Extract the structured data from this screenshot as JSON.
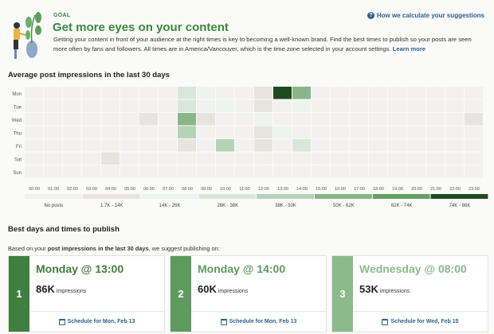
{
  "header": {
    "eyebrow": "GOAL",
    "title": "Get more eyes on your content",
    "help_link": "How we calculate your suggestions",
    "description": "Getting your content in front of your audience at the right times is key to becoming a well-known brand. Find the best times to publish so your posts are seen more often by fans and followers. All times are in America/Vancouver, which is the time zone selected in your account settings.",
    "learn_more": "Learn more"
  },
  "heatmap_title": "Average post impressions in the last 30 days",
  "chart_data": {
    "type": "heatmap",
    "rows": [
      "Mon",
      "Tue",
      "Wed",
      "Thu",
      "Fri",
      "Sat",
      "Sun"
    ],
    "columns": [
      "00:00",
      "01:00",
      "02:00",
      "03:00",
      "04:00",
      "05:00",
      "06:00",
      "07:00",
      "08:00",
      "09:00",
      "10:00",
      "11:00",
      "12:00",
      "13:00",
      "14:00",
      "15:00",
      "16:00",
      "17:00",
      "18:00",
      "19:00",
      "20:00",
      "21:00",
      "22:00",
      "23:00"
    ],
    "legend": [
      "No posts",
      "1.7K - 14K",
      "14K - 26K",
      "26K - 38K",
      "38K - 50K",
      "50K - 62K",
      "62K - 74K",
      "74K - 86K"
    ],
    "colors": [
      "#f2f1f0",
      "#e7e4e0",
      "#eef3ee",
      "#d9e7d9",
      "#b5d3b5",
      "#88b688",
      "#64a064",
      "#1e4a1e"
    ],
    "bin_index": [
      [
        0,
        0,
        0,
        0,
        0,
        0,
        0,
        0,
        3,
        2,
        0,
        0,
        1,
        7,
        5,
        0,
        0,
        0,
        0,
        0,
        0,
        0,
        0,
        0
      ],
      [
        0,
        0,
        0,
        0,
        0,
        0,
        0,
        0,
        3,
        2,
        2,
        0,
        1,
        0,
        2,
        0,
        0,
        0,
        0,
        0,
        0,
        0,
        0,
        0
      ],
      [
        0,
        0,
        0,
        0,
        0,
        0,
        1,
        0,
        5,
        1,
        0,
        0,
        2,
        0,
        0,
        0,
        0,
        0,
        0,
        0,
        0,
        0,
        0,
        1
      ],
      [
        0,
        0,
        0,
        0,
        0,
        0,
        0,
        0,
        4,
        0,
        0,
        0,
        1,
        2,
        0,
        0,
        0,
        0,
        0,
        0,
        0,
        0,
        0,
        0
      ],
      [
        0,
        0,
        0,
        0,
        0,
        0,
        0,
        0,
        1,
        0,
        4,
        0,
        1,
        0,
        3,
        0,
        0,
        0,
        0,
        0,
        0,
        0,
        0,
        0
      ],
      [
        0,
        0,
        0,
        0,
        1,
        0,
        0,
        0,
        0,
        0,
        0,
        0,
        0,
        0,
        0,
        0,
        0,
        0,
        0,
        0,
        0,
        0,
        0,
        0
      ],
      [
        0,
        0,
        0,
        0,
        0,
        0,
        0,
        0,
        0,
        0,
        0,
        0,
        0,
        0,
        0,
        0,
        0,
        0,
        0,
        0,
        0,
        0,
        0,
        0
      ]
    ]
  },
  "best": {
    "title": "Best days and times to publish",
    "intro_pre": "Based on your ",
    "intro_bold": "post impressions in the last 30 days",
    "intro_post": ", we suggest publishing on:",
    "cards": [
      {
        "rank": "1",
        "when": "Monday @ 13:00",
        "value": "86K",
        "unit": "impressions",
        "schedule": "Schedule for Mon, Feb 13",
        "color": "#3f7f3f"
      },
      {
        "rank": "2",
        "when": "Monday @ 14:00",
        "value": "60K",
        "unit": "impressions",
        "schedule": "Schedule for Mon, Feb 13",
        "color": "#5e9a5e"
      },
      {
        "rank": "3",
        "when": "Wednesday @ 08:00",
        "value": "53K",
        "unit": "impressions",
        "schedule": "Schedule for Wed, Feb 15",
        "color": "#8bba8b"
      }
    ]
  }
}
